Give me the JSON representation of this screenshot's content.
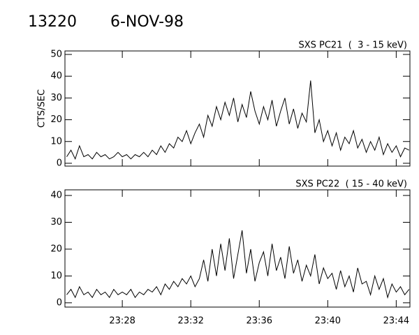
{
  "header": {
    "id": "13220",
    "date": "6-NOV-98"
  },
  "chart_data": [
    {
      "type": "line",
      "title": "SXS PC21  (  3 - 15 keV)",
      "ylabel": "CTS/SEC",
      "color": "#000000",
      "x": [
        24.75,
        25,
        25.25,
        25.5,
        25.75,
        26,
        26.25,
        26.5,
        26.75,
        27,
        27.25,
        27.5,
        27.75,
        28,
        28.25,
        28.5,
        28.75,
        29,
        29.25,
        29.5,
        29.75,
        30,
        30.25,
        30.5,
        30.75,
        31,
        31.25,
        31.5,
        31.75,
        32,
        32.25,
        32.5,
        32.75,
        33,
        33.25,
        33.5,
        33.75,
        34,
        34.25,
        34.5,
        34.75,
        35,
        35.25,
        35.5,
        35.75,
        36,
        36.25,
        36.5,
        36.75,
        37,
        37.25,
        37.5,
        37.75,
        38,
        38.25,
        38.5,
        38.75,
        39,
        39.25,
        39.5,
        39.75,
        40,
        40.25,
        40.5,
        40.75,
        41,
        41.25,
        41.5,
        41.75,
        42,
        42.25,
        42.5,
        42.75,
        43,
        43.25,
        43.5,
        43.75,
        44,
        44.25,
        44.5,
        44.75
      ],
      "values": [
        3,
        6,
        2,
        8,
        3,
        4,
        2,
        5,
        3,
        4,
        2,
        3,
        5,
        3,
        4,
        2,
        4,
        3,
        5,
        3,
        6,
        4,
        8,
        5,
        9,
        7,
        12,
        10,
        15,
        9,
        14,
        18,
        12,
        22,
        17,
        26,
        20,
        28,
        22,
        30,
        19,
        27,
        21,
        33,
        24,
        18,
        26,
        20,
        29,
        17,
        24,
        30,
        18,
        25,
        16,
        23,
        19,
        38,
        14,
        20,
        10,
        15,
        8,
        14,
        6,
        12,
        9,
        15,
        7,
        11,
        5,
        10,
        6,
        12,
        4,
        9,
        5,
        8,
        3,
        7,
        6
      ],
      "xlim": [
        24.65,
        44.8
      ],
      "xticks": [
        {
          "value": 28,
          "label": "23:28"
        },
        {
          "value": 32,
          "label": "23:32"
        },
        {
          "value": 36,
          "label": "23:36"
        },
        {
          "value": 40,
          "label": "23:40"
        },
        {
          "value": 44,
          "label": "23:44"
        }
      ],
      "ylim": [
        -1.3,
        51.6
      ],
      "yticks": [
        0,
        10,
        20,
        30,
        40,
        50
      ]
    },
    {
      "type": "line",
      "title": "SXS PC22  ( 15 - 40 keV)",
      "color": "#000000",
      "x": [
        24.75,
        25,
        25.25,
        25.5,
        25.75,
        26,
        26.25,
        26.5,
        26.75,
        27,
        27.25,
        27.5,
        27.75,
        28,
        28.25,
        28.5,
        28.75,
        29,
        29.25,
        29.5,
        29.75,
        30,
        30.25,
        30.5,
        30.75,
        31,
        31.25,
        31.5,
        31.75,
        32,
        32.25,
        32.5,
        32.75,
        33,
        33.25,
        33.5,
        33.75,
        34,
        34.25,
        34.5,
        34.75,
        35,
        35.25,
        35.5,
        35.75,
        36,
        36.25,
        36.5,
        36.75,
        37,
        37.25,
        37.5,
        37.75,
        38,
        38.25,
        38.5,
        38.75,
        39,
        39.25,
        39.5,
        39.75,
        40,
        40.25,
        40.5,
        40.75,
        41,
        41.25,
        41.5,
        41.75,
        42,
        42.25,
        42.5,
        42.75,
        43,
        43.25,
        43.5,
        43.75,
        44,
        44.25,
        44.5,
        44.75
      ],
      "values": [
        3,
        5,
        2,
        6,
        3,
        4,
        2,
        5,
        3,
        4,
        2,
        5,
        3,
        4,
        3,
        5,
        2,
        4,
        3,
        5,
        4,
        6,
        3,
        7,
        5,
        8,
        6,
        9,
        7,
        10,
        6,
        9,
        16,
        8,
        20,
        10,
        22,
        12,
        24,
        9,
        18,
        27,
        11,
        20,
        8,
        15,
        19,
        10,
        22,
        12,
        17,
        9,
        21,
        11,
        16,
        8,
        14,
        10,
        18,
        7,
        13,
        9,
        11,
        5,
        12,
        6,
        10,
        4,
        13,
        7,
        8,
        3,
        10,
        5,
        9,
        2,
        7,
        4,
        6,
        3,
        5
      ],
      "xlim": [
        24.65,
        44.8
      ],
      "xticks": [
        {
          "value": 28,
          "label": "23:28"
        },
        {
          "value": 32,
          "label": "23:32"
        },
        {
          "value": 36,
          "label": "23:36"
        },
        {
          "value": 40,
          "label": "23:40"
        },
        {
          "value": 44,
          "label": "23:44"
        }
      ],
      "ylim": [
        -1.6,
        42.1
      ],
      "yticks": [
        0,
        10,
        20,
        30,
        40
      ]
    }
  ]
}
